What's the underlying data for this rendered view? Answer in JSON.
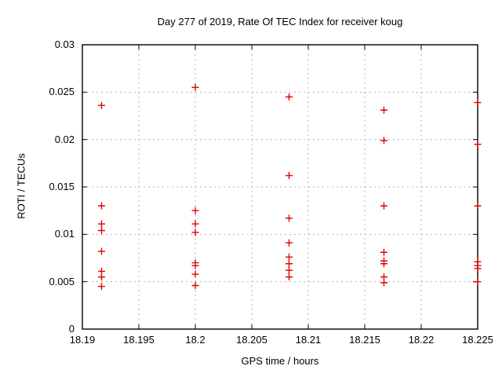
{
  "chart_data": {
    "type": "scatter",
    "title": "Day 277 of 2019, Rate Of TEC Index for receiver koug",
    "xlabel": "GPS time / hours",
    "ylabel": "ROTI / TECUs",
    "xlim": [
      18.19,
      18.225
    ],
    "ylim": [
      0,
      0.03
    ],
    "xticks": [
      18.19,
      18.195,
      18.2,
      18.205,
      18.21,
      18.215,
      18.22,
      18.225
    ],
    "xtick_labels": [
      "18.19",
      "18.195",
      "18.2",
      "18.205",
      "18.21",
      "18.215",
      "18.22",
      "18.225"
    ],
    "yticks": [
      0,
      0.005,
      0.01,
      0.015,
      0.02,
      0.025,
      0.03
    ],
    "ytick_labels": [
      "0",
      "0.005",
      "0.01",
      "0.015",
      "0.02",
      "0.025",
      "0.03"
    ],
    "grid": true,
    "legend_position": "none",
    "marker": "plus",
    "colors": {
      "marker": "#e30000",
      "grid": "#b3b3b3",
      "axis": "#000000",
      "text": "#000000",
      "background": "#ffffff"
    },
    "points": [
      {
        "x": 18.1917,
        "y": 0.0236
      },
      {
        "x": 18.1917,
        "y": 0.013
      },
      {
        "x": 18.1917,
        "y": 0.0111
      },
      {
        "x": 18.1917,
        "y": 0.0104
      },
      {
        "x": 18.1917,
        "y": 0.0082
      },
      {
        "x": 18.1917,
        "y": 0.0061
      },
      {
        "x": 18.1917,
        "y": 0.0055
      },
      {
        "x": 18.1917,
        "y": 0.0045
      },
      {
        "x": 18.2,
        "y": 0.0255
      },
      {
        "x": 18.2,
        "y": 0.0125
      },
      {
        "x": 18.2,
        "y": 0.0111
      },
      {
        "x": 18.2,
        "y": 0.0102
      },
      {
        "x": 18.2,
        "y": 0.007
      },
      {
        "x": 18.2,
        "y": 0.0067
      },
      {
        "x": 18.2,
        "y": 0.0058
      },
      {
        "x": 18.2,
        "y": 0.0046
      },
      {
        "x": 18.2083,
        "y": 0.0245
      },
      {
        "x": 18.2083,
        "y": 0.0162
      },
      {
        "x": 18.2083,
        "y": 0.0117
      },
      {
        "x": 18.2083,
        "y": 0.0091
      },
      {
        "x": 18.2083,
        "y": 0.0076
      },
      {
        "x": 18.2083,
        "y": 0.0069
      },
      {
        "x": 18.2083,
        "y": 0.0062
      },
      {
        "x": 18.2083,
        "y": 0.0055
      },
      {
        "x": 18.2167,
        "y": 0.0231
      },
      {
        "x": 18.2167,
        "y": 0.0199
      },
      {
        "x": 18.2167,
        "y": 0.013
      },
      {
        "x": 18.2167,
        "y": 0.0081
      },
      {
        "x": 18.2167,
        "y": 0.0072
      },
      {
        "x": 18.2167,
        "y": 0.0069
      },
      {
        "x": 18.2167,
        "y": 0.0055
      },
      {
        "x": 18.2167,
        "y": 0.0049
      },
      {
        "x": 18.225,
        "y": 0.0239
      },
      {
        "x": 18.225,
        "y": 0.0195
      },
      {
        "x": 18.225,
        "y": 0.013
      },
      {
        "x": 18.225,
        "y": 0.0071
      },
      {
        "x": 18.225,
        "y": 0.0067
      },
      {
        "x": 18.225,
        "y": 0.0064
      },
      {
        "x": 18.225,
        "y": 0.005
      }
    ]
  }
}
